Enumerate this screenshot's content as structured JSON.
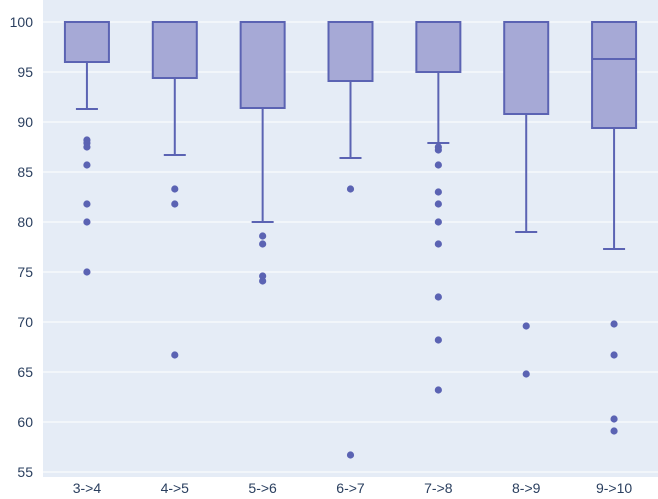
{
  "chart_data": {
    "type": "box",
    "title": "",
    "xlabel": "",
    "ylabel": "",
    "ylim": [
      54.5,
      102.2
    ],
    "yticks": [
      55,
      60,
      65,
      70,
      75,
      80,
      85,
      90,
      95,
      100
    ],
    "grid": true,
    "colors": {
      "plot_bg": "#e5ecf6",
      "grid": "#ffffff",
      "box_fill": "#a6a9d6",
      "box_line": "#5b63b3",
      "outlier": "#5b63b3",
      "tick_text": "#2a3f5f"
    },
    "categories": [
      "3->4",
      "4->5",
      "5->6",
      "6->7",
      "7->8",
      "8->9",
      "9->10"
    ],
    "boxes": [
      {
        "category": "3->4",
        "min": 91.3,
        "q1": 96.0,
        "median": 100.0,
        "q3": 100.0,
        "max": 100.0,
        "outliers": [
          88.2,
          87.9,
          87.5,
          85.7,
          81.8,
          80.0,
          75.0
        ]
      },
      {
        "category": "4->5",
        "min": 86.7,
        "q1": 94.4,
        "median": 100.0,
        "q3": 100.0,
        "max": 100.0,
        "outliers": [
          83.3,
          81.8,
          66.7
        ]
      },
      {
        "category": "5->6",
        "min": 80.0,
        "q1": 91.4,
        "median": 100.0,
        "q3": 100.0,
        "max": 100.0,
        "outliers": [
          78.6,
          77.8,
          74.6,
          74.1
        ]
      },
      {
        "category": "6->7",
        "min": 86.4,
        "q1": 94.1,
        "median": 100.0,
        "q3": 100.0,
        "max": 100.0,
        "outliers": [
          83.3,
          56.7
        ]
      },
      {
        "category": "7->8",
        "min": 87.9,
        "q1": 95.0,
        "median": 100.0,
        "q3": 100.0,
        "max": 100.0,
        "outliers": [
          87.5,
          87.2,
          85.7,
          83.0,
          81.8,
          80.0,
          77.8,
          72.5,
          68.2,
          63.2
        ]
      },
      {
        "category": "8->9",
        "min": 79.0,
        "q1": 90.8,
        "median": 100.0,
        "q3": 100.0,
        "max": 100.0,
        "outliers": [
          69.6,
          64.8
        ]
      },
      {
        "category": "9->10",
        "min": 77.3,
        "q1": 89.4,
        "median": 96.3,
        "q3": 100.0,
        "max": 100.0,
        "outliers": [
          69.8,
          66.7,
          60.3,
          59.1
        ]
      }
    ]
  }
}
